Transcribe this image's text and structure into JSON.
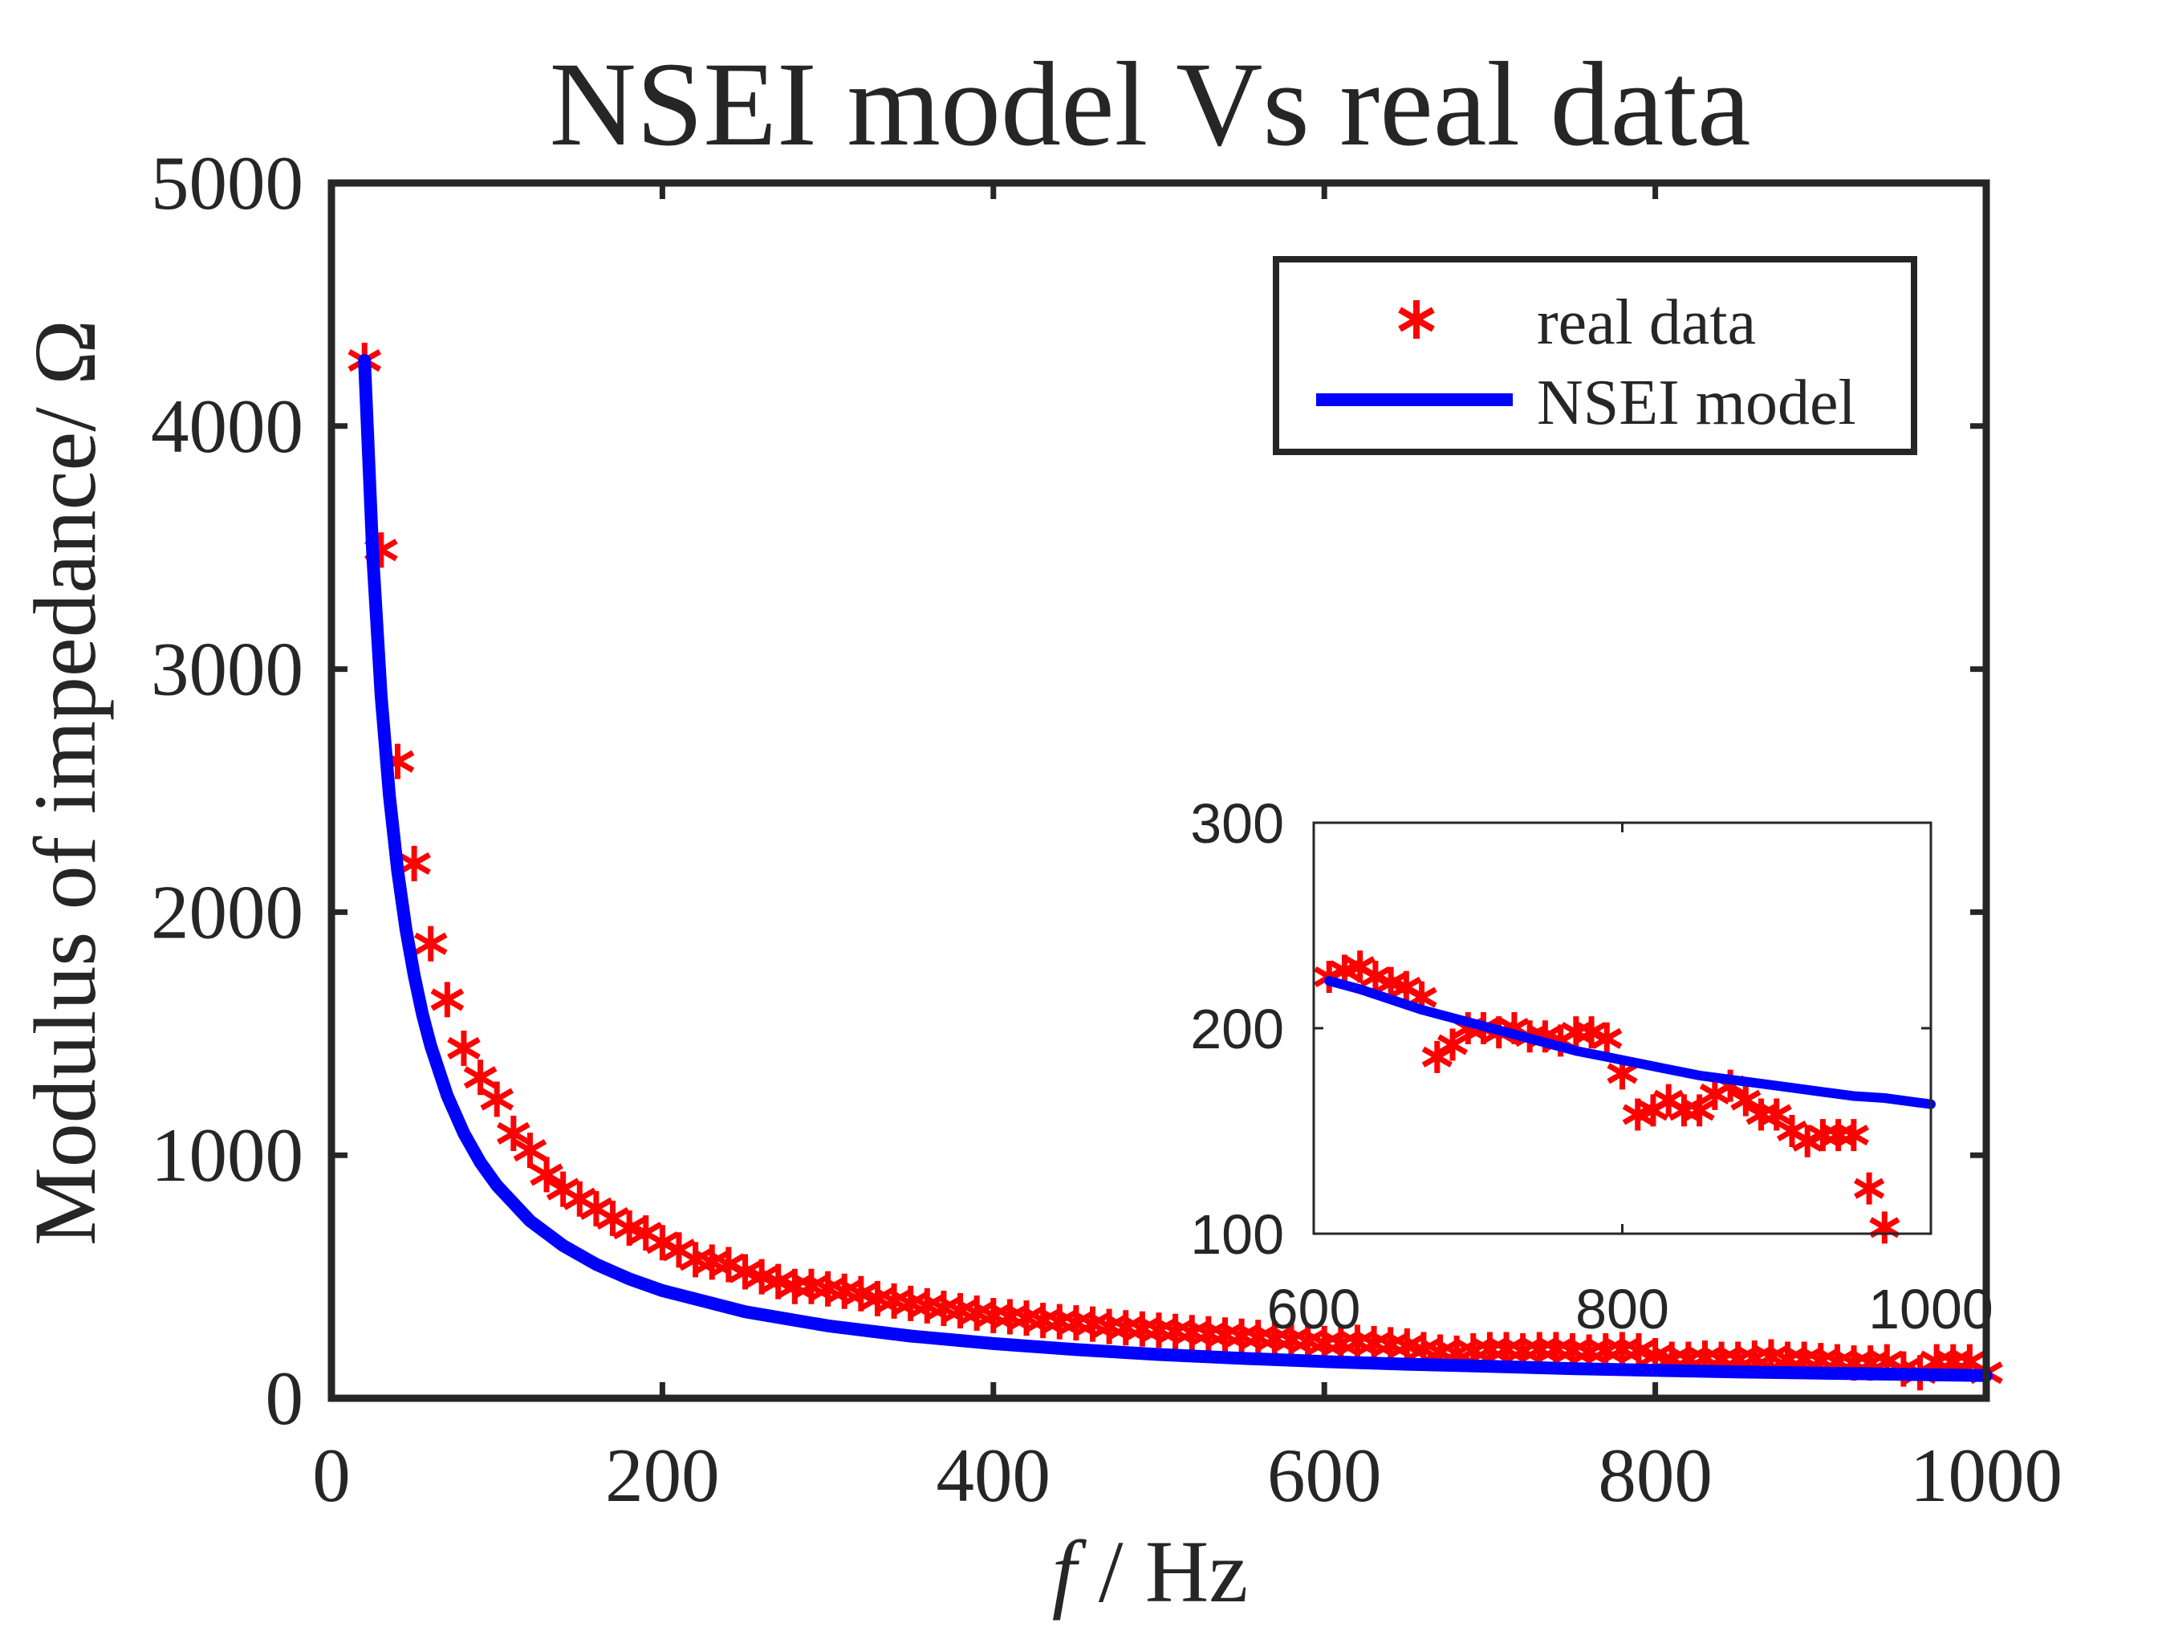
{
  "chart_data": [
    {
      "type": "scatter",
      "title": "NSEI model Vs real data",
      "xlabel_italic": "f",
      "xlabel_rest": " / Hz",
      "ylabel": "Modulus of impedance/ Ω",
      "xlim": [
        0,
        1000
      ],
      "ylim": [
        0,
        5000
      ],
      "xticks": [
        0,
        200,
        400,
        600,
        800,
        1000
      ],
      "yticks": [
        0,
        1000,
        2000,
        3000,
        4000,
        5000
      ],
      "xtick_labels": [
        "0",
        "200",
        "400",
        "600",
        "800",
        "1000"
      ],
      "ytick_labels": [
        "0",
        "1000",
        "2000",
        "3000",
        "4000",
        "5000"
      ],
      "grid": false,
      "legend_position": "top-right",
      "series": [
        {
          "name": "real data",
          "kind": "marker",
          "marker": "asterisk",
          "color": "#ff0000",
          "x": [
            20,
            30,
            40,
            50,
            60,
            70,
            80,
            90,
            100,
            110,
            120,
            130,
            140,
            150,
            160,
            170,
            180,
            190,
            200,
            210,
            220,
            230,
            240,
            250,
            260,
            270,
            280,
            290,
            300,
            310,
            320,
            330,
            340,
            350,
            360,
            370,
            380,
            390,
            400,
            410,
            420,
            430,
            440,
            450,
            460,
            470,
            480,
            490,
            500,
            510,
            520,
            530,
            540,
            550,
            560,
            570,
            580,
            590,
            600,
            610,
            620,
            630,
            640,
            650,
            660,
            670,
            680,
            690,
            700,
            710,
            720,
            730,
            740,
            750,
            760,
            770,
            780,
            790,
            800,
            810,
            820,
            830,
            840,
            850,
            860,
            870,
            880,
            890,
            900,
            910,
            920,
            930,
            940,
            950,
            960,
            970,
            980,
            990,
            1000
          ],
          "y": [
            4270,
            3490,
            2620,
            2200,
            1870,
            1640,
            1440,
            1320,
            1230,
            1090,
            1020,
            920,
            860,
            820,
            780,
            740,
            700,
            680,
            640,
            610,
            570,
            560,
            550,
            520,
            500,
            480,
            460,
            460,
            450,
            440,
            430,
            410,
            400,
            390,
            380,
            370,
            360,
            350,
            340,
            335,
            330,
            320,
            315,
            310,
            305,
            295,
            290,
            285,
            280,
            275,
            270,
            265,
            260,
            255,
            250,
            245,
            240,
            235,
            225,
            225,
            230,
            225,
            220,
            215,
            200,
            190,
            185,
            195,
            200,
            200,
            195,
            200,
            200,
            195,
            190,
            195,
            200,
            195,
            175,
            160,
            160,
            165,
            160,
            160,
            165,
            170,
            160,
            160,
            155,
            150,
            145,
            145,
            150,
            120,
            105,
            150,
            150,
            150,
            105
          ]
        },
        {
          "name": "NSEI model",
          "kind": "line",
          "color": "#0000ff",
          "x": [
            20,
            25,
            30,
            35,
            40,
            45,
            50,
            55,
            60,
            70,
            80,
            90,
            100,
            120,
            140,
            160,
            180,
            200,
            250,
            300,
            350,
            400,
            450,
            500,
            550,
            600,
            650,
            700,
            750,
            800,
            850,
            900,
            950,
            1000
          ],
          "y": [
            4270,
            3460,
            2890,
            2480,
            2170,
            1930,
            1740,
            1580,
            1450,
            1245,
            1090,
            970,
            875,
            730,
            628,
            551,
            491,
            443,
            356,
            298,
            256,
            225,
            200,
            180,
            164,
            151,
            140,
            131,
            122,
            115,
            108,
            103,
            98,
            93
          ]
        }
      ]
    },
    {
      "type": "scatter",
      "title": "",
      "xlabel": "",
      "ylabel": "",
      "xlim": [
        600,
        1000
      ],
      "ylim": [
        100,
        300
      ],
      "xticks": [
        600,
        800,
        1000
      ],
      "yticks": [
        100,
        200,
        300
      ],
      "xtick_labels": [
        "600",
        "800",
        "1000"
      ],
      "ytick_labels": [
        "100",
        "200",
        "300"
      ],
      "grid": false,
      "series": [
        {
          "kind": "marker",
          "marker": "asterisk",
          "color": "#ff0000",
          "x": [
            610,
            620,
            630,
            640,
            650,
            660,
            670,
            680,
            690,
            700,
            710,
            720,
            730,
            740,
            750,
            760,
            770,
            780,
            790,
            800,
            810,
            820,
            830,
            840,
            850,
            860,
            870,
            880,
            890,
            900,
            910,
            920,
            930,
            940,
            950,
            960,
            970
          ],
          "y": [
            225,
            228,
            230,
            225,
            222,
            220,
            215,
            186,
            192,
            200,
            200,
            198,
            200,
            196,
            196,
            194,
            198,
            198,
            195,
            178,
            158,
            160,
            165,
            160,
            160,
            168,
            172,
            165,
            158,
            158,
            150,
            145,
            148,
            148,
            148,
            122,
            103
          ]
        },
        {
          "kind": "line",
          "color": "#0000ff",
          "x": [
            610,
            630,
            650,
            670,
            690,
            710,
            730,
            750,
            770,
            790,
            810,
            830,
            850,
            870,
            890,
            910,
            930,
            950,
            970,
            990,
            1000
          ],
          "y": [
            223,
            219,
            214,
            209,
            205,
            201,
            197,
            193,
            189,
            186,
            183,
            180,
            177,
            175,
            173,
            171,
            169,
            167,
            166,
            164,
            163
          ]
        }
      ]
    }
  ]
}
